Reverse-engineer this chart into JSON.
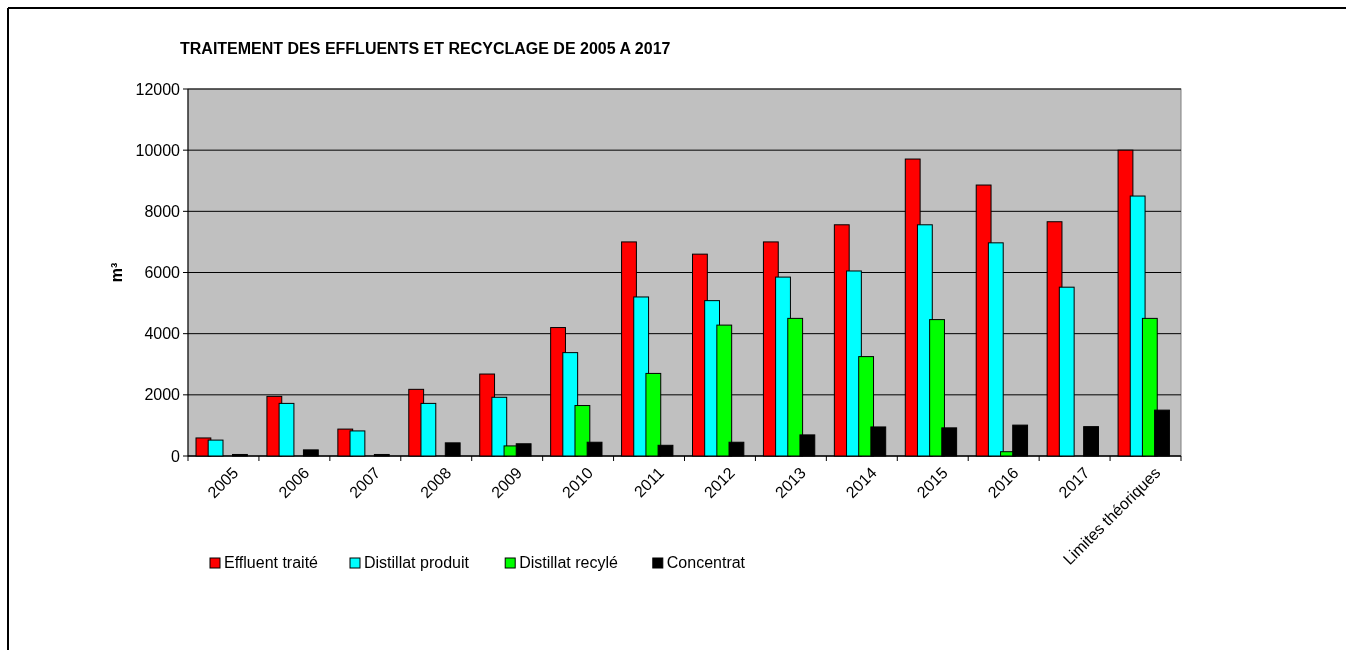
{
  "chart_data": {
    "type": "bar",
    "title": "TRAITEMENT DES EFFLUENTS ET RECYCLAGE DE 2005 A 2017",
    "ylabel": "m³",
    "categories": [
      "2005",
      "2006",
      "2007",
      "2008",
      "2009",
      "2010",
      "2011",
      "2012",
      "2013",
      "2014",
      "2015",
      "2016",
      "2017",
      "Limites théoriques"
    ],
    "series": [
      {
        "name": "Effluent traité",
        "color": "#ff0000",
        "values": [
          590,
          1950,
          880,
          2180,
          2680,
          4200,
          7000,
          6600,
          7000,
          7560,
          9710,
          8860,
          7660,
          10000
        ]
      },
      {
        "name": "Distillat produit",
        "color": "#00ffff",
        "values": [
          520,
          1720,
          820,
          1720,
          1920,
          3380,
          5200,
          5080,
          5850,
          6050,
          7560,
          6970,
          5520,
          8500
        ]
      },
      {
        "name": "Distillat recylé",
        "color": "#00ff00",
        "values": [
          null,
          null,
          null,
          null,
          330,
          1650,
          2700,
          4280,
          4500,
          3250,
          4460,
          140,
          null,
          4500
        ]
      },
      {
        "name": "Concentrat",
        "color": "#000000",
        "values": [
          50,
          200,
          50,
          430,
          400,
          450,
          350,
          450,
          690,
          950,
          920,
          1010,
          960,
          1500
        ]
      }
    ],
    "ylim": [
      0,
      12000
    ],
    "yticks": [
      0,
      2000,
      4000,
      6000,
      8000,
      10000,
      12000
    ],
    "grid": "y",
    "legend": "bottom"
  }
}
